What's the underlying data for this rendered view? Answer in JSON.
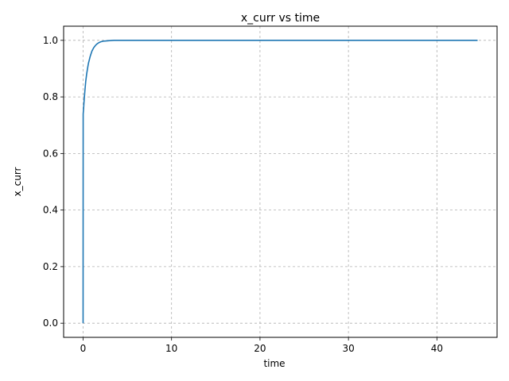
{
  "chart_data": {
    "type": "line",
    "title": "x_curr vs time",
    "xlabel": "time",
    "ylabel": "x_curr",
    "xlim": [
      -2.2,
      46.8
    ],
    "ylim": [
      -0.05,
      1.05
    ],
    "x_ticks": [
      0,
      10,
      20,
      30,
      40
    ],
    "x_tick_labels": [
      "0",
      "10",
      "20",
      "30",
      "40"
    ],
    "y_ticks": [
      0.0,
      0.2,
      0.4,
      0.6,
      0.8,
      1.0
    ],
    "y_tick_labels": [
      "0.0",
      "0.2",
      "0.4",
      "0.6",
      "0.8",
      "1.0"
    ],
    "grid": true,
    "series": [
      {
        "color": "#1f77b4",
        "x": [
          0.0,
          0.01,
          0.05,
          0.1,
          0.2,
          0.3,
          0.4,
          0.5,
          0.6,
          0.8,
          1.0,
          1.2,
          1.4,
          1.6,
          1.8,
          2.0,
          2.3,
          2.6,
          3.0,
          3.5,
          4.0,
          5.0,
          10.0,
          20.0,
          30.0,
          40.0,
          44.6
        ],
        "y": [
          0.0,
          0.74,
          0.755,
          0.78,
          0.82,
          0.855,
          0.88,
          0.9,
          0.918,
          0.943,
          0.962,
          0.974,
          0.982,
          0.988,
          0.992,
          0.995,
          0.997,
          0.998,
          0.999,
          1.0,
          1.0,
          1.0,
          1.0,
          1.0,
          1.0,
          1.0,
          1.0
        ]
      }
    ]
  }
}
